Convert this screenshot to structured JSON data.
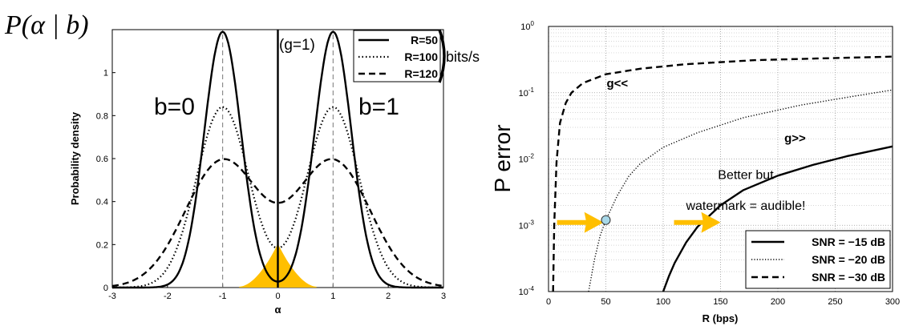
{
  "chart_data": [
    {
      "type": "line",
      "title": "P(α | b)",
      "xlabel": "α",
      "ylabel": "Probability density",
      "xlim": [
        -3,
        3
      ],
      "ylim": [
        0,
        1.2
      ],
      "xticks": [
        -3,
        -2,
        -1,
        0,
        1,
        2,
        3
      ],
      "yticks": [
        0,
        0.2,
        0.4,
        0.6,
        0.8,
        1
      ],
      "grid": false,
      "legend_position": "top-right",
      "legend_unit": "bits/s",
      "condition_label": "(g=1)",
      "class_labels": [
        {
          "text": "b=0",
          "center": -1
        },
        {
          "text": "b=1",
          "center": 1
        }
      ],
      "series": [
        {
          "name": "R=50",
          "style": "solid",
          "means": [
            -1,
            1
          ],
          "sigma": 0.335,
          "peak": 1.19
        },
        {
          "name": "R=100",
          "style": "dotted",
          "means": [
            -1,
            1
          ],
          "sigma": 0.475,
          "peak": 0.84
        },
        {
          "name": "R=120",
          "style": "dashed",
          "means": [
            -1,
            1
          ],
          "sigma": 0.675,
          "peak": 0.59
        }
      ],
      "overlap_region": {
        "x": [
          -0.7,
          0.7
        ],
        "peak": 0.2,
        "color": "#ffbf00"
      }
    },
    {
      "type": "line",
      "xlabel": "R (bps)",
      "ylabel": "P error",
      "xlim": [
        0,
        300
      ],
      "ylim": [
        0.0001,
        1
      ],
      "y_scale": "log",
      "xticks": [
        0,
        50,
        100,
        150,
        200,
        250,
        300
      ],
      "yticks": [
        "10^-4",
        "10^-3",
        "10^-2",
        "10^-1",
        "10^0"
      ],
      "grid": true,
      "legend_position": "bottom-right",
      "series": [
        {
          "name": "SNR = −15 dB",
          "style": "solid",
          "points": [
            [
              100,
              0.0001
            ],
            [
              105,
              0.00017
            ],
            [
              110,
              0.00027
            ],
            [
              120,
              0.00055
            ],
            [
              130,
              0.00095
            ],
            [
              150,
              0.002
            ],
            [
              170,
              0.0034
            ],
            [
              200,
              0.0056
            ],
            [
              230,
              0.0081
            ],
            [
              260,
              0.011
            ],
            [
              300,
              0.0155
            ]
          ]
        },
        {
          "name": "SNR = −20 dB",
          "style": "dotted",
          "points": [
            [
              35,
              0.0001
            ],
            [
              40,
              0.0003
            ],
            [
              45,
              0.0007
            ],
            [
              50,
              0.0012
            ],
            [
              60,
              0.0028
            ],
            [
              70,
              0.0055
            ],
            [
              80,
              0.0085
            ],
            [
              100,
              0.015
            ],
            [
              130,
              0.025
            ],
            [
              170,
              0.042
            ],
            [
              220,
              0.065
            ],
            [
              260,
              0.085
            ],
            [
              300,
              0.11
            ]
          ]
        },
        {
          "name": "SNR = −30 dB",
          "style": "dashed",
          "points": [
            [
              4,
              0.0001
            ],
            [
              5,
              0.001
            ],
            [
              7,
              0.009
            ],
            [
              10,
              0.035
            ],
            [
              15,
              0.07
            ],
            [
              20,
              0.1
            ],
            [
              30,
              0.14
            ],
            [
              50,
              0.19
            ],
            [
              80,
              0.23
            ],
            [
              120,
              0.27
            ],
            [
              180,
              0.31
            ],
            [
              240,
              0.33
            ],
            [
              300,
              0.35
            ]
          ]
        }
      ],
      "annotations": [
        {
          "text": "g<<",
          "x": 60,
          "y": 0.12
        },
        {
          "text": "g>>",
          "x": 215,
          "y": 0.018
        },
        {
          "text": "Better but",
          "x": 172,
          "y": 0.005
        },
        {
          "text": "watermark = audible!",
          "x": 172,
          "y": 0.0017
        }
      ],
      "marker": {
        "x": 50,
        "y": 0.0012,
        "color": "#a8d8e8"
      },
      "arrows": [
        {
          "tip_x": 48,
          "tip_y": 0.0012,
          "color": "#ffbf00"
        },
        {
          "tip_x": 150,
          "tip_y": 0.0012,
          "color": "#ffbf00"
        }
      ]
    }
  ]
}
